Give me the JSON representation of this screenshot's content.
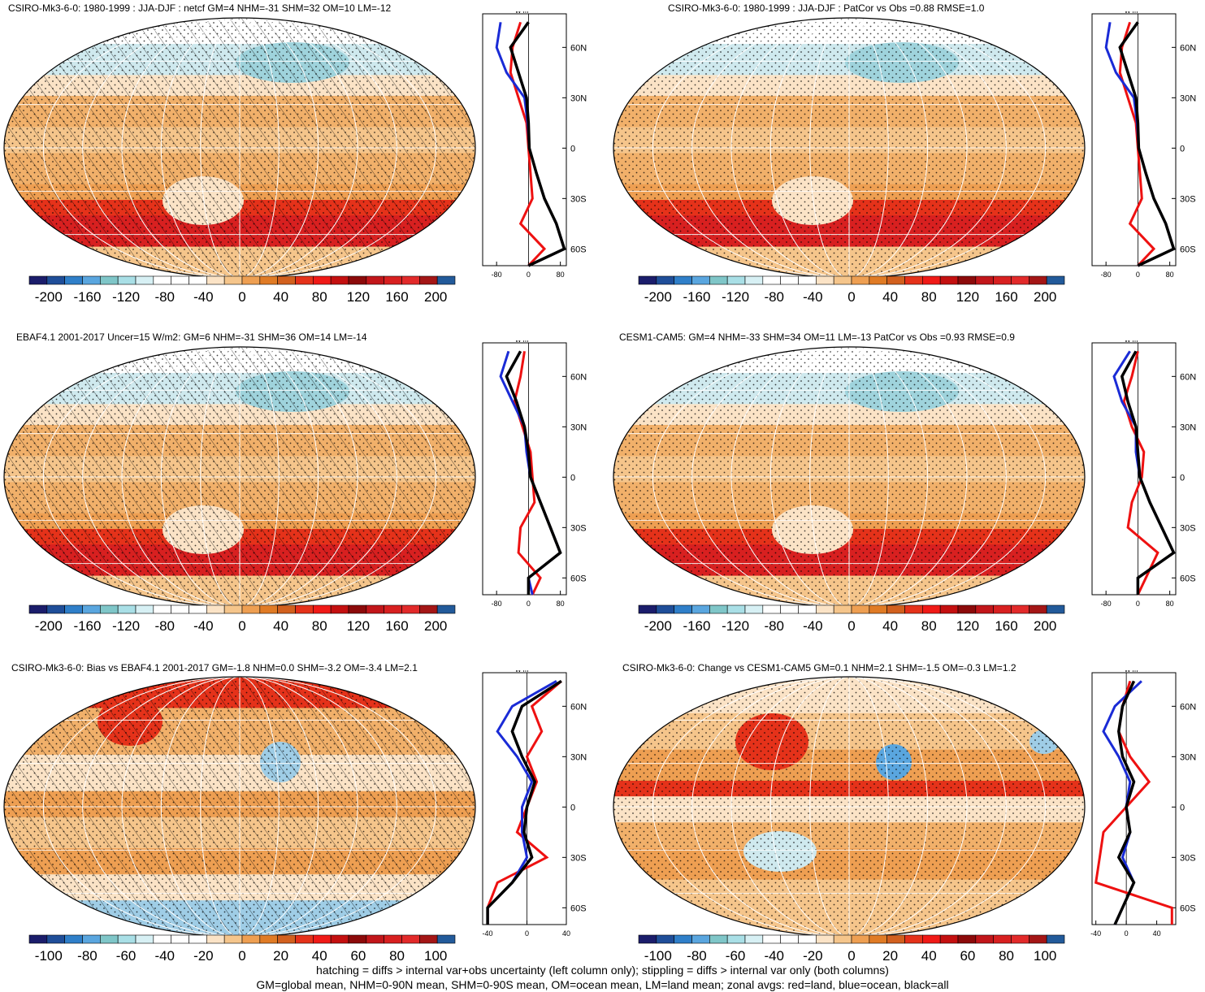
{
  "panels": [
    {
      "title": "CSIRO-Mk3-6-0: 1980-1999 : JJA-DJF : netcf GM=4 NHM=-31 SHM=32 OM=10 LM=-12",
      "zonal_xticks": [
        "-80",
        "0",
        "80"
      ],
      "zonal_xvals": [
        -80,
        0,
        80
      ],
      "zonal_xlim": [
        -115,
        95
      ],
      "cbar": [
        "-200",
        "-160",
        "-120",
        "-80",
        "-40",
        "0",
        "40",
        "80",
        "120",
        "160",
        "200"
      ],
      "hatch": true,
      "style": "clim"
    },
    {
      "title": "CSIRO-Mk3-6-0: 1980-1999 : JJA-DJF : PatCor vs Obs =0.88 RMSE=1.0",
      "zonal_xticks": [
        "-80",
        "0",
        "80"
      ],
      "zonal_xvals": [
        -80,
        0,
        80
      ],
      "zonal_xlim": [
        -115,
        95
      ],
      "cbar": [
        "-200",
        "-160",
        "-120",
        "-80",
        "-40",
        "0",
        "40",
        "80",
        "120",
        "160",
        "200"
      ],
      "hatch": false,
      "style": "clim"
    },
    {
      "title": "EBAF4.1 2001-2017 Uncer=15 W/m2: GM=6 NHM=-31 SHM=36 OM=14 LM=-14",
      "zonal_xticks": [
        "-80",
        "0",
        "80"
      ],
      "zonal_xvals": [
        -80,
        0,
        80
      ],
      "zonal_xlim": [
        -115,
        95
      ],
      "cbar": [
        "-200",
        "-160",
        "-120",
        "-80",
        "-40",
        "0",
        "40",
        "80",
        "120",
        "160",
        "200"
      ],
      "hatch": true,
      "style": "clim"
    },
    {
      "title": "CESM1-CAM5: GM=4 NHM=-33 SHM=34 OM=11 LM=-13 PatCor vs Obs =0.93 RMSE=0.9",
      "zonal_xticks": [
        "-80",
        "0",
        "80"
      ],
      "zonal_xvals": [
        -80,
        0,
        80
      ],
      "zonal_xlim": [
        -115,
        95
      ],
      "cbar": [
        "-200",
        "-160",
        "-120",
        "-80",
        "-40",
        "0",
        "40",
        "80",
        "120",
        "160",
        "200"
      ],
      "hatch": false,
      "style": "clim"
    },
    {
      "title": "CSIRO-Mk3-6-0: Bias vs EBAF4.1 2001-2017 GM=-1.8 NHM=0.0 SHM=-3.2 OM=-3.4 LM=2.1",
      "zonal_xticks": [
        "-40",
        "0",
        "40"
      ],
      "zonal_xvals": [
        -40,
        0,
        40
      ],
      "zonal_xlim": [
        -45,
        40
      ],
      "cbar": [
        "-100",
        "-80",
        "-60",
        "-40",
        "-20",
        "0",
        "20",
        "40",
        "60",
        "80",
        "100"
      ],
      "hatch": true,
      "style": "bias"
    },
    {
      "title": "CSIRO-Mk3-6-0: Change vs CESM1-CAM5 GM=0.1 NHM=2.1 SHM=-1.5 OM=-0.3 LM=1.2",
      "zonal_xticks": [
        "-40",
        "0",
        "40"
      ],
      "zonal_xvals": [
        -40,
        0,
        40
      ],
      "zonal_xlim": [
        -45,
        65
      ],
      "cbar": [
        "-100",
        "-80",
        "-60",
        "-40",
        "-20",
        "0",
        "20",
        "40",
        "60",
        "80",
        "100"
      ],
      "hatch": false,
      "style": "change"
    }
  ],
  "lat_ticks": [
    "60N",
    "30N",
    "0",
    "30S",
    "60S"
  ],
  "lat_vals": [
    60,
    30,
    0,
    -30,
    -60
  ],
  "units": "W m⁻²",
  "cbar_colors": [
    "#1b1d6b",
    "#1f4e99",
    "#2f7fc9",
    "#5aa6df",
    "#7fc6c8",
    "#a9dfe6",
    "#d7f0f4",
    "#ffffff",
    "#ffffff",
    "#ffffff",
    "#fbe3c6",
    "#f5c58b",
    "#ee9f52",
    "#e07b25",
    "#d2601e",
    "#e5321a",
    "#f01a17",
    "#c41010",
    "#8c0a0a",
    "#c2161a",
    "#d82020",
    "#e22a2a",
    "#a41616",
    "#225a9a"
  ],
  "footer": [
    "hatching = diffs > internal var+obs uncertainty (left column only); stippling = diffs > internal var only (both columns)",
    "GM=global mean, NHM=0-90N mean, SHM=0-90S mean, OM=ocean mean, LM=land mean; zonal avgs: red=land, blue=ocean, black=all"
  ],
  "chart_data": [
    {
      "type": "heatmap",
      "title": "CSIRO-Mk3-6-0: 1980-1999 : JJA-DJF : netcf GM=4 NHM=-31 SHM=32 OM=10 LM=-12",
      "colorbar_ticks": [
        -200,
        -160,
        -120,
        -80,
        -40,
        0,
        40,
        80,
        120,
        160,
        200
      ],
      "zonal_lat": [
        75,
        60,
        45,
        30,
        15,
        0,
        -15,
        -30,
        -45,
        -60,
        -70
      ],
      "zonal_all": [
        0,
        -45,
        -25,
        -5,
        0,
        2,
        20,
        40,
        70,
        90,
        0
      ],
      "zonal_land": [
        -20,
        -40,
        -45,
        -25,
        -5,
        0,
        5,
        10,
        -20,
        40,
        0
      ],
      "zonal_ocean": [
        -70,
        -80,
        -55,
        -10,
        -2,
        2,
        20,
        40,
        70,
        90,
        0
      ]
    },
    {
      "type": "heatmap",
      "title": "CSIRO-Mk3-6-0: 1980-1999 : JJA-DJF : PatCor vs Obs =0.88 RMSE=1.0",
      "colorbar_ticks": [
        -200,
        -160,
        -120,
        -80,
        -40,
        0,
        40,
        80,
        120,
        160,
        200
      ],
      "zonal_lat": [
        75,
        60,
        45,
        30,
        15,
        0,
        -15,
        -30,
        -45,
        -60,
        -70
      ],
      "zonal_all": [
        0,
        -45,
        -25,
        -5,
        0,
        2,
        20,
        40,
        70,
        90,
        0
      ],
      "zonal_land": [
        -20,
        -40,
        -45,
        -25,
        -5,
        0,
        5,
        10,
        -20,
        40,
        0
      ],
      "zonal_ocean": [
        -70,
        -80,
        -55,
        -10,
        -2,
        2,
        20,
        40,
        70,
        90,
        0
      ]
    },
    {
      "type": "heatmap",
      "title": "EBAF4.1 2001-2017 Uncer=15 W/m2: GM=6 NHM=-31 SHM=36 OM=14 LM=-14",
      "colorbar_ticks": [
        -200,
        -160,
        -120,
        -80,
        -40,
        0,
        40,
        80,
        120,
        160,
        200
      ],
      "zonal_lat": [
        75,
        60,
        45,
        30,
        15,
        0,
        -15,
        -30,
        -45,
        -60,
        -70
      ],
      "zonal_all": [
        -20,
        -55,
        -30,
        -10,
        0,
        5,
        30,
        55,
        80,
        0,
        0
      ],
      "zonal_land": [
        -10,
        -20,
        -35,
        -15,
        5,
        10,
        15,
        -20,
        -25,
        30,
        10
      ],
      "zonal_ocean": [
        -50,
        -70,
        -40,
        -10,
        -5,
        5,
        30,
        55,
        80,
        0,
        10
      ]
    },
    {
      "type": "heatmap",
      "title": "CESM1-CAM5: GM=4 NHM=-33 SHM=34 OM=11 LM=-13 PatCor vs Obs =0.93 RMSE=0.9",
      "colorbar_ticks": [
        -200,
        -160,
        -120,
        -80,
        -40,
        0,
        40,
        80,
        120,
        160,
        200
      ],
      "zonal_lat": [
        75,
        60,
        45,
        30,
        15,
        0,
        -15,
        -30,
        -45,
        -60,
        -70
      ],
      "zonal_all": [
        -5,
        -40,
        -25,
        -5,
        0,
        5,
        30,
        60,
        90,
        0,
        0
      ],
      "zonal_land": [
        0,
        -15,
        -35,
        -15,
        15,
        10,
        -15,
        -25,
        50,
        20,
        0
      ],
      "zonal_ocean": [
        -20,
        -60,
        -40,
        -5,
        -5,
        5,
        30,
        60,
        90,
        0,
        0
      ]
    },
    {
      "type": "heatmap",
      "title": "CSIRO-Mk3-6-0: Bias vs EBAF4.1 2001-2017 GM=-1.8 NHM=0.0 SHM=-3.2 OM=-3.4 LM=2.1",
      "colorbar_ticks": [
        -100,
        -80,
        -60,
        -40,
        -20,
        0,
        20,
        40,
        60,
        80,
        100
      ],
      "zonal_lat": [
        75,
        60,
        45,
        30,
        15,
        0,
        -15,
        -30,
        -45,
        -60,
        -70
      ],
      "zonal_all": [
        35,
        -5,
        -15,
        -5,
        8,
        0,
        -3,
        5,
        -15,
        -40,
        -40
      ],
      "zonal_land": [
        35,
        5,
        15,
        0,
        10,
        0,
        -10,
        20,
        -30,
        -40,
        -40
      ],
      "zonal_ocean": [
        30,
        -15,
        -30,
        -10,
        5,
        -5,
        -5,
        0,
        -15,
        -40,
        -40
      ]
    },
    {
      "type": "heatmap",
      "title": "CSIRO-Mk3-6-0: Change vs CESM1-CAM5 GM=0.1 NHM=2.1 SHM=-1.5 OM=-0.3 LM=1.2",
      "colorbar_ticks": [
        -100,
        -80,
        -60,
        -40,
        -20,
        0,
        20,
        40,
        60,
        80,
        100
      ],
      "zonal_lat": [
        75,
        60,
        45,
        30,
        15,
        0,
        -15,
        -30,
        -45,
        -60,
        -70
      ],
      "zonal_all": [
        10,
        -5,
        -10,
        -5,
        10,
        0,
        5,
        -10,
        10,
        -5,
        -15
      ],
      "zonal_land": [
        5,
        -5,
        -10,
        5,
        30,
        0,
        -30,
        -35,
        -40,
        60,
        60
      ],
      "zonal_ocean": [
        20,
        -15,
        -30,
        -10,
        5,
        0,
        5,
        -5,
        10,
        -5,
        -15
      ]
    }
  ]
}
